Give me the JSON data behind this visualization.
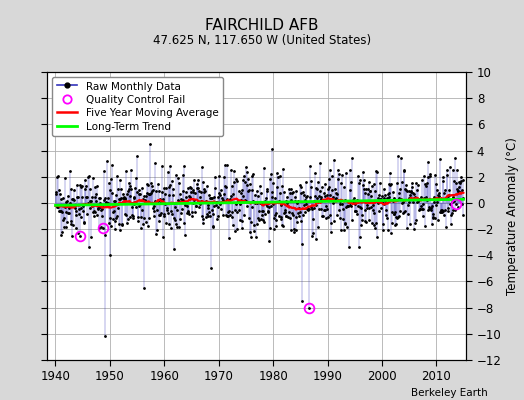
{
  "title": "FAIRCHILD AFB",
  "subtitle": "47.625 N, 117.650 W (United States)",
  "ylabel_right": "Temperature Anomaly (°C)",
  "credit": "Berkeley Earth",
  "xmin": 1938.5,
  "xmax": 2015.5,
  "ymin": -12,
  "ymax": 10,
  "yticks": [
    -12,
    -10,
    -8,
    -6,
    -4,
    -2,
    0,
    2,
    4,
    6,
    8,
    10
  ],
  "xticks": [
    1940,
    1950,
    1960,
    1970,
    1980,
    1990,
    2000,
    2010
  ],
  "background_color": "#d8d8d8",
  "plot_bg_color": "#ffffff",
  "grid_color": "#b0b0b0",
  "seed": 42,
  "start_year": 1940,
  "end_year": 2014
}
